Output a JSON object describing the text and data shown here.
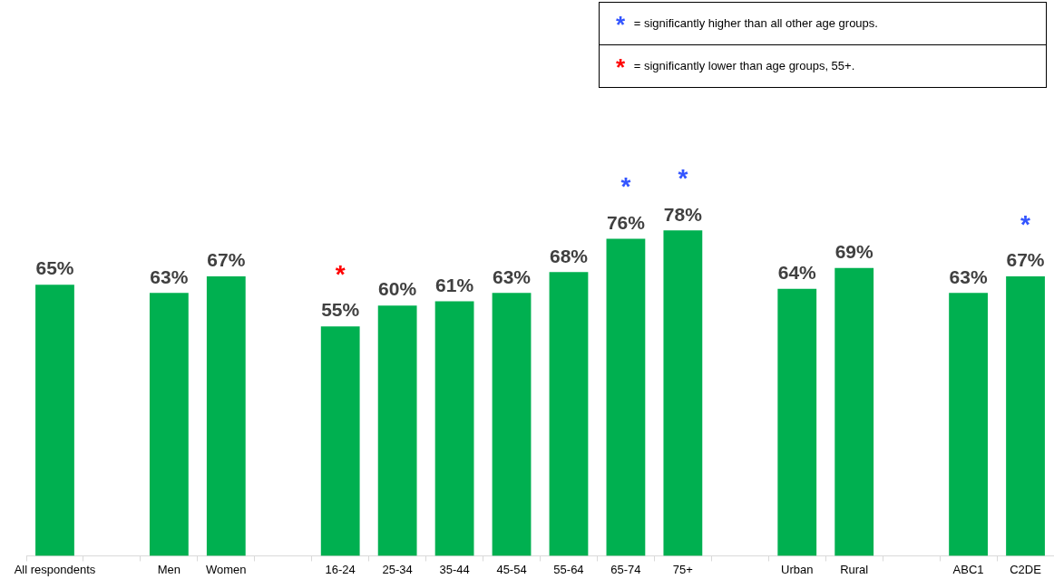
{
  "chart_data": {
    "type": "bar",
    "categories": [
      "All respondents",
      null,
      "Men",
      "Women",
      null,
      "16-24",
      "25-34",
      "35-44",
      "45-54",
      "55-64",
      "65-74",
      "75+",
      null,
      "Urban",
      "Rural",
      null,
      "ABC1",
      "C2DE"
    ],
    "values": [
      65,
      null,
      63,
      67,
      null,
      55,
      60,
      61,
      63,
      68,
      76,
      78,
      null,
      64,
      69,
      null,
      63,
      67
    ],
    "value_labels": [
      "65%",
      null,
      "63%",
      "67%",
      null,
      "55%",
      "60%",
      "61%",
      "63%",
      "68%",
      "76%",
      "78%",
      null,
      "64%",
      "69%",
      null,
      "63%",
      "67%"
    ],
    "color": "#00b050",
    "tick_labels": "x",
    "grid": false,
    "legend": false,
    "annotations": [
      "$^{*}$ = significantly higher than all other age groups.",
      "$^{*}$ = significantly lower than age groups, 55+.",
      {
        "text": "*",
        "x": "16-24",
        "y": 55
      },
      {
        "text": "*",
        "x": "65-74",
        "y": 76
      },
      {
        "text": "*",
        "x": "75+",
        "y": 78
      },
      {
        "text": "*",
        "x": "C2DE",
        "y": 67
      }
    ]
  }
}
